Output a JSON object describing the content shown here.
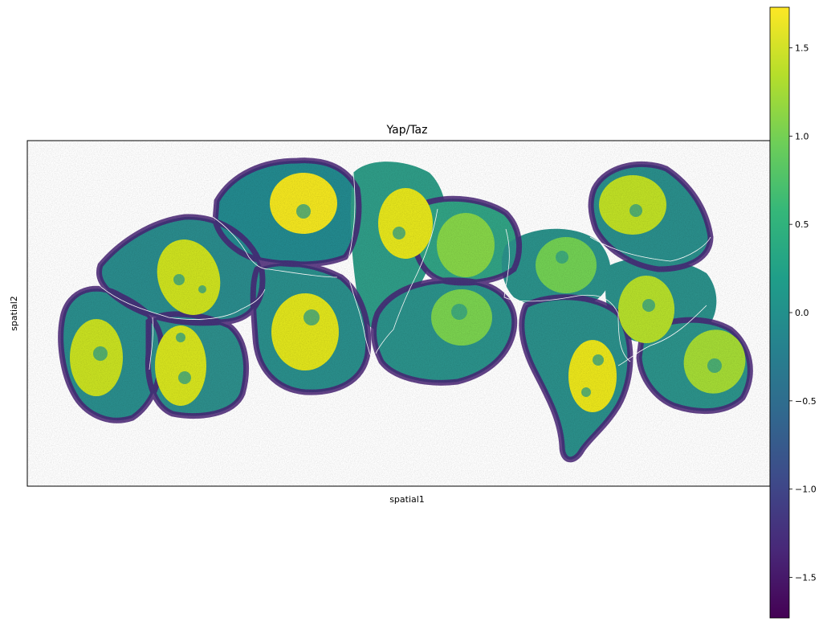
{
  "figure": {
    "title": "Yap/Taz",
    "xlabel": "spatial1",
    "ylabel": "spatial2"
  },
  "colorbar": {
    "colormap": "viridis",
    "vmin": -1.73,
    "vmax": 1.73,
    "ticks": [
      {
        "value": 1.5,
        "label": "1.5"
      },
      {
        "value": 1.0,
        "label": "1.0"
      },
      {
        "value": 0.5,
        "label": "0.5"
      },
      {
        "value": 0.0,
        "label": "0.0"
      },
      {
        "value": -0.5,
        "label": "−0.5"
      },
      {
        "value": -1.0,
        "label": "−1.0"
      },
      {
        "value": -1.5,
        "label": "−1.5"
      }
    ],
    "stops": [
      "#440154",
      "#482878",
      "#3e4989",
      "#31688e",
      "#26828e",
      "#1f9e89",
      "#35b779",
      "#6ece58",
      "#b5de2b",
      "#fde725"
    ]
  }
}
